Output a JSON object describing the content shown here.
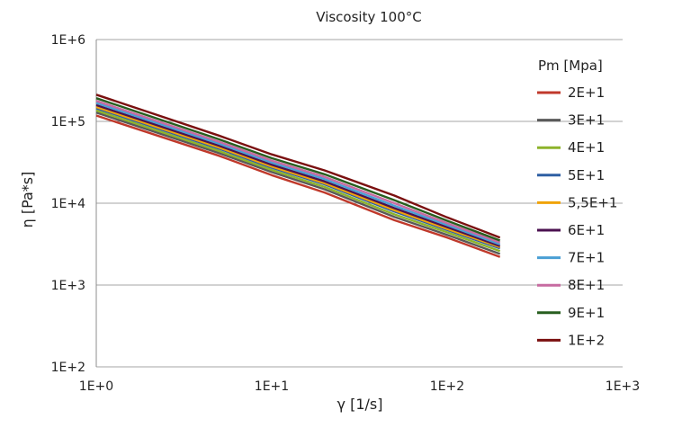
{
  "chart_data": {
    "type": "line",
    "title": "Viscosity 100°C",
    "xlabel": "γ [1/s]",
    "ylabel": "η [Pa*s]",
    "x_scale": "log",
    "y_scale": "log",
    "xlim": [
      1,
      1000
    ],
    "ylim": [
      100,
      1000000
    ],
    "x_ticks": [
      "1E+0",
      "1E+1",
      "1E+2",
      "1E+3"
    ],
    "y_ticks": [
      "1E+2",
      "1E+3",
      "1E+4",
      "1E+5",
      "1E+6"
    ],
    "grid": "horizontal",
    "legend_title": "Pm [Mpa]",
    "legend_position": "right",
    "x": [
      1,
      5,
      10,
      20,
      50,
      100,
      200
    ],
    "series": [
      {
        "name": "2E+1",
        "color": "#c0392b",
        "values": [
          118000,
          38000,
          22000,
          13500,
          6200,
          3800,
          2200
        ]
      },
      {
        "name": "3E+1",
        "color": "#595959",
        "values": [
          128000,
          41000,
          24000,
          14800,
          6800,
          4100,
          2400
        ]
      },
      {
        "name": "4E+1",
        "color": "#8db32b",
        "values": [
          136000,
          43500,
          25500,
          15800,
          7300,
          4400,
          2600
        ]
      },
      {
        "name": "5E+1",
        "color": "#2e5fa3",
        "values": [
          145000,
          46500,
          27200,
          17000,
          7900,
          4700,
          2800
        ]
      },
      {
        "name": "5,5E+1",
        "color": "#f0a30a",
        "values": [
          150000,
          48000,
          28100,
          17600,
          8200,
          4850,
          2900
        ]
      },
      {
        "name": "6E+1",
        "color": "#4b1150",
        "values": [
          158000,
          50500,
          29500,
          18500,
          8700,
          5100,
          3000
        ]
      },
      {
        "name": "7E+1",
        "color": "#4a9fd4",
        "values": [
          168000,
          53500,
          31300,
          19700,
          9300,
          5400,
          3150
        ]
      },
      {
        "name": "8E+1",
        "color": "#c76ba1",
        "values": [
          178000,
          56500,
          33200,
          21000,
          10000,
          5700,
          3300
        ]
      },
      {
        "name": "9E+1",
        "color": "#275e1f",
        "values": [
          192000,
          60500,
          35500,
          22600,
          10900,
          6100,
          3500
        ]
      },
      {
        "name": "1E+2",
        "color": "#7b1010",
        "values": [
          212000,
          67000,
          39500,
          25200,
          12400,
          6700,
          3800
        ]
      }
    ]
  }
}
